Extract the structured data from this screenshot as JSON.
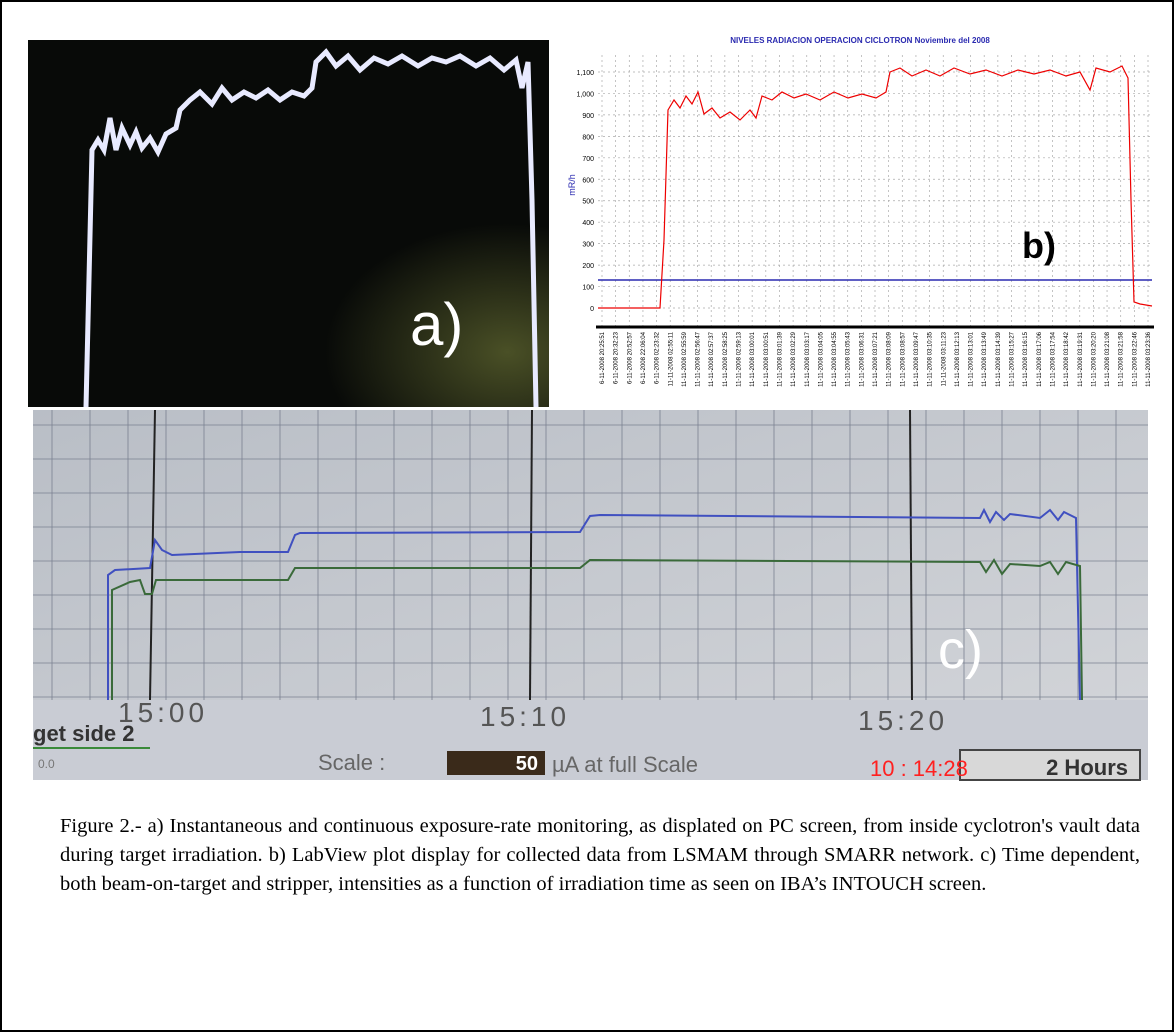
{
  "panels": {
    "a": {
      "label": "a)"
    },
    "b": {
      "title": "NIVELES RADIACION OPERACION CICLOTRON Noviembre del 2008",
      "y_label": "mR/h",
      "label": "b)",
      "y_ticks": [
        "1,100",
        "1,000",
        "900",
        "800",
        "700",
        "600",
        "500",
        "400",
        "300",
        "200",
        "100",
        "0"
      ],
      "x_ticks": [
        "6-11-2008 20:25:51",
        "6-11-2008 20:32:23",
        "6-11-2008 20:52:57",
        "6-11-2008 22:06:04",
        "6-11-2008 02:23:32",
        "11-11-2008 02:55:11",
        "11-11-2008 02:55:59",
        "11-11-2008 02:56:47",
        "11-11-2008 02:57:37",
        "11-11-2008 02:58:25",
        "11-11-2008 02:59:13",
        "11-11-2008 03:00:01",
        "11-11-2008 03:00:51",
        "11-11-2008 03:01:39",
        "11-11-2008 03:02:29",
        "11-11-2008 03:03:17",
        "11-11-2008 03:04:05",
        "11-11-2008 03:04:55",
        "11-11-2008 03:05:43",
        "11-11-2008 03:06:31",
        "11-11-2008 03:07:21",
        "11-11-2008 03:08:09",
        "11-11-2008 03:08:57",
        "11-11-2008 03:09:47",
        "11-11-2008 03:10:35",
        "11-11-2008 03:11:23",
        "11-11-2008 03:12:13",
        "11-11-2008 03:13:01",
        "11-11-2008 03:13:49",
        "11-11-2008 03:14:39",
        "11-11-2008 03:15:27",
        "11-11-2008 03:16:15",
        "11-11-2008 03:17:06",
        "11-11-2008 03:17:54",
        "11-11-2008 03:18:42",
        "11-11-2008 03:19:31",
        "11-11-2008 03:20:20",
        "11-11-2008 03:21:08",
        "11-11-2008 03:21:58",
        "11-11-2008 03:22:46",
        "11-11-2008 03:23:36"
      ]
    },
    "c": {
      "time_labels": [
        "15:00",
        "15:10",
        "15:20"
      ],
      "target": "get side 2",
      "target_value": "0.0",
      "scale_label": "Scale :",
      "scale_value": "50",
      "scale_unit": "µA at full Scale",
      "clock": "10 : 14:28",
      "hours": "2 Hours",
      "label": "c)"
    }
  },
  "caption": "Figure 2.- a) Instantaneous and continuous exposure-rate monitoring, as displated on PC screen, from inside cyclotron's vault data during target irradiation. b) LabView plot display for collected data from LSMAM through SMARR network. c) Time dependent, both beam-on-target and stripper, intensities as a function of irradiation time as seen on IBA’s INTOUCH screen."
}
